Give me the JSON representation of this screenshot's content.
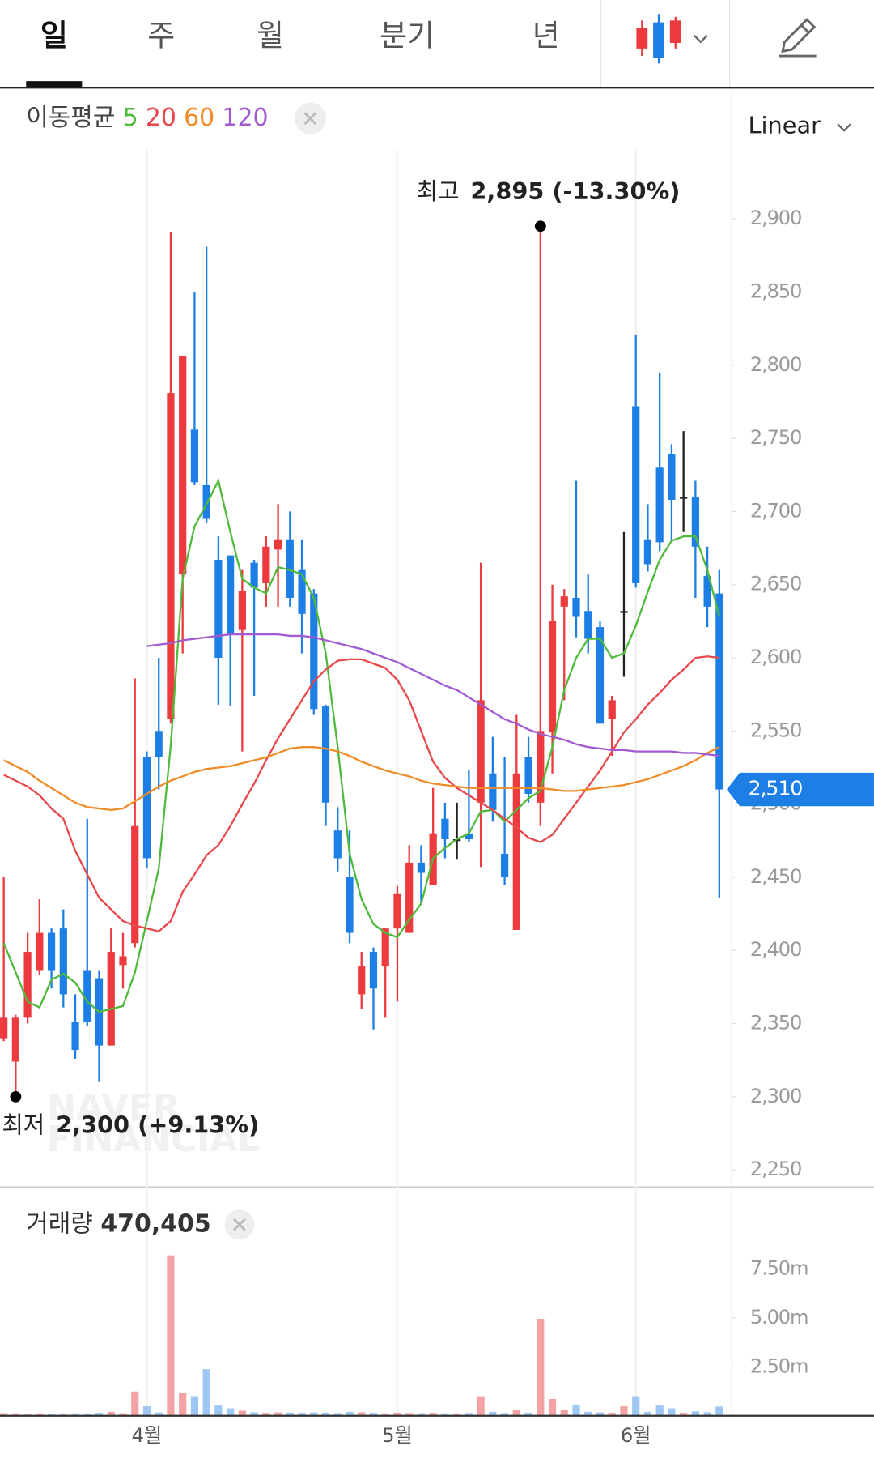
{
  "tabs": [
    "일",
    "주",
    "월",
    "분기",
    "년"
  ],
  "chart_data": {
    "type": "candlestick",
    "categories": [
      null,
      null,
      null,
      null,
      null,
      null,
      null,
      null,
      null,
      null,
      null,
      null,
      "4월",
      null,
      null,
      null,
      null,
      null,
      null,
      null,
      null,
      null,
      null,
      null,
      null,
      null,
      null,
      null,
      null,
      null,
      null,
      null,
      null,
      "5월",
      null,
      null,
      null,
      null,
      null,
      null,
      null,
      null,
      null,
      null,
      null,
      null,
      null,
      null,
      null,
      null,
      null,
      null,
      null,
      "6월",
      null,
      null,
      null,
      null,
      null,
      null,
      null
    ],
    "open": [
      2340,
      2324,
      2354,
      2386,
      2412,
      2415,
      2351,
      2386,
      2381,
      2335,
      2390,
      2405,
      2532,
      2550,
      2558,
      2657,
      2756,
      2718,
      2667,
      2670,
      2619,
      2665,
      2651,
      2674,
      2681,
      2660,
      2644,
      2567,
      2482,
      2450,
      2370,
      2399,
      2389,
      2415,
      2412,
      2460,
      2445,
      2490,
      2476,
      2480,
      2501,
      2521,
      2466,
      2414,
      2532,
      2501,
      2549,
      2635,
      2641,
      2632,
      2621,
      2558,
      2632,
      2772,
      2681,
      2730,
      2739,
      2710,
      2710,
      2656,
      2644
    ],
    "high": [
      2450,
      2356,
      2412,
      2435,
      2415,
      2428,
      2370,
      2490,
      2386,
      2415,
      2412,
      2586,
      2536,
      2600,
      2891,
      2806,
      2850,
      2881,
      2683,
      2670,
      2660,
      2667,
      2683,
      2705,
      2700,
      2681,
      2647,
      2568,
      2498,
      2482,
      2399,
      2402,
      2415,
      2444,
      2472,
      2472,
      2511,
      2501,
      2501,
      2523,
      2665,
      2546,
      2532,
      2561,
      2546,
      2895,
      2650,
      2647,
      2721,
      2657,
      2625,
      2574,
      2686,
      2821,
      2705,
      2795,
      2746,
      2755,
      2721,
      2676,
      2660
    ],
    "low": [
      2338,
      2300,
      2350,
      2383,
      2374,
      2361,
      2326,
      2348,
      2310,
      2335,
      2374,
      2402,
      2456,
      2510,
      2555,
      2603,
      2718,
      2692,
      2568,
      2567,
      2536,
      2574,
      2635,
      2635,
      2635,
      2603,
      2561,
      2485,
      2454,
      2405,
      2360,
      2346,
      2354,
      2365,
      2412,
      2431,
      2445,
      2463,
      2462,
      2474,
      2457,
      2488,
      2445,
      2414,
      2501,
      2485,
      2521,
      2571,
      2614,
      2603,
      2555,
      2533,
      2587,
      2648,
      2659,
      2673,
      2679,
      2686,
      2641,
      2621,
      2436
    ],
    "close": [
      2354,
      2354,
      2399,
      2412,
      2386,
      2370,
      2332,
      2351,
      2335,
      2399,
      2396,
      2485,
      2463,
      2532,
      2781,
      2806,
      2720,
      2695,
      2600,
      2616,
      2646,
      2648,
      2676,
      2681,
      2641,
      2630,
      2565,
      2501,
      2463,
      2412,
      2389,
      2374,
      2415,
      2439,
      2460,
      2453,
      2480,
      2476,
      2476,
      2476,
      2571,
      2496,
      2450,
      2521,
      2507,
      2550,
      2625,
      2642,
      2628,
      2613,
      2555,
      2571,
      2632,
      2651,
      2664,
      2679,
      2708,
      2710,
      2676,
      2635,
      2510
    ],
    "up_color": "#ec3a3e",
    "down_color": "#1d7fe6",
    "flat_color": "#222222",
    "ylim": [
      2240,
      2954
    ],
    "yticks": [
      {
        "value": 2250,
        "label": "2,250"
      },
      {
        "value": 2300,
        "label": "2,300"
      },
      {
        "value": 2350,
        "label": "2,350"
      },
      {
        "value": 2400,
        "label": "2,400"
      },
      {
        "value": 2450,
        "label": "2,450"
      },
      {
        "value": 2500,
        "label": "2,500"
      },
      {
        "value": 2550,
        "label": "2,550"
      },
      {
        "value": 2600,
        "label": "2,600"
      },
      {
        "value": 2650,
        "label": "2,650"
      },
      {
        "value": 2700,
        "label": "2,700"
      },
      {
        "value": 2750,
        "label": "2,750"
      },
      {
        "value": 2800,
        "label": "2,800"
      },
      {
        "value": 2850,
        "label": "2,850"
      },
      {
        "value": 2900,
        "label": "2,900"
      }
    ],
    "scale_label": "Linear",
    "ma_label": "이동평균",
    "series": [
      {
        "name": "5",
        "color": "#4fb93c",
        "values": [
          2405,
          2385,
          2365,
          2361,
          2380,
          2384,
          2378,
          2365,
          2358,
          2360,
          2362,
          2385,
          2420,
          2456,
          2540,
          2654,
          2690,
          2705,
          2721,
          2686,
          2654,
          2648,
          2644,
          2662,
          2660,
          2657,
          2641,
          2603,
          2539,
          2466,
          2435,
          2418,
          2412,
          2409,
          2421,
          2432,
          2463,
          2470,
          2476,
          2480,
          2495,
          2496,
          2488,
          2496,
          2504,
          2509,
          2539,
          2578,
          2600,
          2613,
          2613,
          2600,
          2603,
          2622,
          2645,
          2667,
          2680,
          2683,
          2683,
          2660,
          2628
        ]
      },
      {
        "name": "20",
        "color": "#e8484c",
        "values": [
          2520,
          2516,
          2512,
          2506,
          2497,
          2490,
          2468,
          2452,
          2436,
          2428,
          2420,
          2417,
          2415,
          2413,
          2420,
          2440,
          2452,
          2465,
          2472,
          2485,
          2500,
          2514,
          2530,
          2545,
          2558,
          2571,
          2584,
          2592,
          2598,
          2599,
          2599,
          2596,
          2593,
          2585,
          2571,
          2550,
          2529,
          2518,
          2511,
          2506,
          2501,
          2496,
          2490,
          2484,
          2477,
          2474,
          2479,
          2490,
          2501,
          2512,
          2523,
          2536,
          2549,
          2558,
          2568,
          2576,
          2585,
          2592,
          2600,
          2601,
          2600
        ]
      },
      {
        "name": "60",
        "color": "#f08c28",
        "values": [
          2530,
          2526,
          2522,
          2516,
          2511,
          2506,
          2501,
          2498,
          2497,
          2496,
          2497,
          2502,
          2507,
          2512,
          2516,
          2519,
          2522,
          2524,
          2525,
          2526,
          2528,
          2530,
          2532,
          2535,
          2538,
          2539,
          2539,
          2538,
          2536,
          2533,
          2529,
          2526,
          2523,
          2521,
          2519,
          2516,
          2514,
          2513,
          2512,
          2511,
          2511,
          2511,
          2511,
          2511,
          2511,
          2511,
          2510,
          2509,
          2509,
          2510,
          2511,
          2512,
          2513,
          2515,
          2517,
          2520,
          2523,
          2526,
          2530,
          2535,
          2539
        ]
      },
      {
        "name": "120",
        "color": "#a25ad2",
        "values": [
          null,
          null,
          null,
          null,
          null,
          null,
          null,
          null,
          null,
          null,
          null,
          null,
          2608,
          2609,
          2610,
          2612,
          2613,
          2614,
          2615,
          2616,
          2616,
          2616,
          2616,
          2616,
          2615,
          2615,
          2614,
          2612,
          2610,
          2608,
          2606,
          2603,
          2600,
          2597,
          2593,
          2589,
          2585,
          2581,
          2578,
          2573,
          2568,
          2563,
          2558,
          2555,
          2551,
          2548,
          2546,
          2544,
          2541,
          2539,
          2538,
          2537,
          2537,
          2536,
          2536,
          2536,
          2536,
          2535,
          2535,
          2534,
          2533
        ]
      }
    ],
    "high_annotation": {
      "label": "최고",
      "text": "2,895 (-13.30%)"
    },
    "low_annotation": {
      "label": "최저",
      "text": "2,300 (+9.13%)"
    },
    "last_price": {
      "value": 2510,
      "label": "2,510"
    },
    "watermark": [
      "NAVER",
      "FINANCIAL"
    ],
    "volume": {
      "title": "거래량",
      "last": {
        "value": 470405,
        "label": "470,405"
      },
      "up_color": "#f4a3a5",
      "down_color": "#9ec8f3",
      "values": [
        130000,
        120000,
        100000,
        110000,
        90000,
        100000,
        120000,
        110000,
        150000,
        200000,
        130000,
        1240000,
        480000,
        170000,
        8190000,
        1190000,
        1000000,
        2380000,
        520000,
        380000,
        260000,
        180000,
        150000,
        170000,
        160000,
        150000,
        170000,
        160000,
        140000,
        200000,
        180000,
        150000,
        120000,
        160000,
        140000,
        130000,
        150000,
        120000,
        100000,
        140000,
        1000000,
        200000,
        140000,
        300000,
        160000,
        4950000,
        860000,
        300000,
        570000,
        200000,
        170000,
        150000,
        480000,
        1000000,
        200000,
        520000,
        380000,
        150000,
        230000,
        180000,
        470405
      ],
      "ylim": [
        0,
        8950000
      ],
      "yticks": [
        {
          "value": 2500000,
          "label": "2.50m"
        },
        {
          "value": 5000000,
          "label": "5.00m"
        },
        {
          "value": 7500000,
          "label": "7.50m"
        }
      ]
    }
  }
}
